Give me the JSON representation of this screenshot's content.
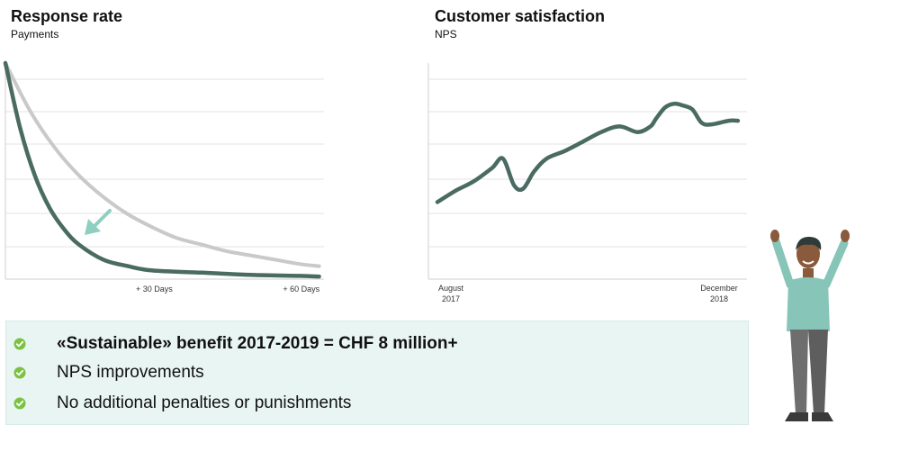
{
  "chart_data": [
    {
      "type": "line",
      "title": "Response rate",
      "subtitle": "Payments",
      "x_tick_labels": [
        "+ 30 Days",
        "+ 60 Days"
      ],
      "x_ticks": [
        30,
        60
      ],
      "xlim": [
        0,
        65
      ],
      "ylim": [
        0,
        100
      ],
      "grid": true,
      "series": [
        {
          "color": "#c9c9c9",
          "x": [
            0,
            5,
            10,
            15,
            20,
            25,
            30,
            35,
            40,
            45,
            50,
            55,
            60,
            64
          ],
          "values": [
            100,
            78,
            61,
            48,
            38,
            30,
            24,
            19,
            16,
            13,
            11,
            9,
            7,
            6
          ]
        },
        {
          "color": "#4a6b62",
          "x": [
            0,
            3,
            6,
            9,
            12,
            15,
            20,
            25,
            30,
            40,
            50,
            60,
            64
          ],
          "values": [
            100,
            70,
            48,
            33,
            23,
            16,
            9,
            6,
            4,
            3,
            2,
            1.5,
            1.2
          ]
        }
      ],
      "annotation": {
        "type": "arrow",
        "color": "#8ecfc0"
      }
    },
    {
      "type": "line",
      "title": "Customer satisfaction",
      "subtitle": "NPS",
      "x_tick_labels": [
        {
          "line1": "August",
          "line2": "2017"
        },
        {
          "line1": "December",
          "line2": "2018"
        }
      ],
      "x": [
        0,
        1,
        2,
        3,
        3.6,
        4.2,
        4.7,
        5.3,
        6,
        7,
        8,
        9,
        10,
        11,
        11.7,
        12,
        12.5,
        13,
        13.5,
        14,
        14.5,
        15,
        16,
        16.5
      ],
      "xlim": [
        0,
        17
      ],
      "ylim": [
        0,
        100
      ],
      "grid": true,
      "series": [
        {
          "color": "#4a6b62",
          "values": [
            36,
            42,
            47,
            54,
            59,
            45,
            43,
            52,
            59,
            63,
            68,
            73,
            76,
            73,
            76,
            80,
            86,
            88,
            87,
            85,
            78,
            77,
            79,
            79
          ]
        }
      ]
    }
  ],
  "benefits": [
    {
      "text": "«Sustainable» benefit 2017-2019 = CHF 8 million+",
      "icon": "check-circle-icon",
      "bold": true
    },
    {
      "text": "NPS improvements",
      "icon": "check-circle-icon",
      "bold": false
    },
    {
      "text": "No additional penalties or punishments",
      "icon": "check-circle-icon",
      "bold": false
    }
  ],
  "colors": {
    "check": "#7bc242",
    "panel_bg": "#e9f5f2",
    "dark_line": "#4a6b62",
    "light_line": "#c9c9c9",
    "arrow": "#8ecfc0"
  }
}
